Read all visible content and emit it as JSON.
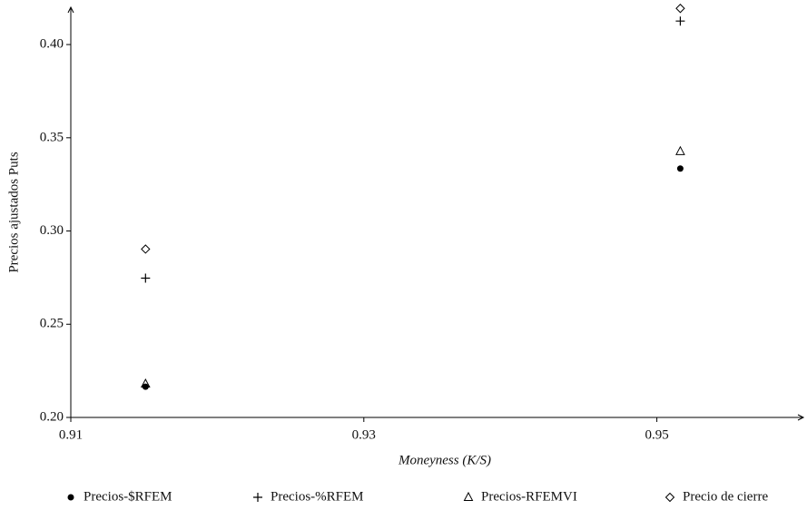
{
  "chart_data": {
    "type": "scatter",
    "x_label": "Moneyness (K/S)",
    "y_label": "Precios ajustados Puts",
    "xlim": [
      0.91,
      0.96
    ],
    "xticks": [
      0.91,
      0.93,
      0.95
    ],
    "ylim": [
      0.2,
      0.42
    ],
    "yticks": [
      {
        "value": 0.2,
        "label": "0.20"
      },
      {
        "value": 0.25,
        "label": "0.25"
      },
      {
        "value": 0.3,
        "label": "0.30"
      },
      {
        "value": 0.35,
        "label": "0.35"
      },
      {
        "value": 0.4,
        "label": "0.40"
      }
    ],
    "legend": "bottom",
    "series": [
      {
        "name": "Precios-$RFEM",
        "marker": "dot",
        "color": "#000000",
        "x": [
          0.9151,
          0.9516
        ],
        "values": [
          0.2165,
          0.3335
        ]
      },
      {
        "name": "Precios-%RFEM",
        "marker": "plus",
        "color": "#000000",
        "x": [
          0.9151,
          0.9516
        ],
        "values": [
          0.2747,
          0.4126
        ]
      },
      {
        "name": "Precios-RFEMVI",
        "marker": "triangle",
        "color": "#000000",
        "x": [
          0.9151,
          0.9516
        ],
        "values": [
          0.218,
          0.3427
        ]
      },
      {
        "name": "Precio de cierre",
        "marker": "diamond",
        "color": "#000000",
        "x": [
          0.9151,
          0.9516
        ],
        "values": [
          0.2903,
          0.4194
        ]
      }
    ]
  }
}
